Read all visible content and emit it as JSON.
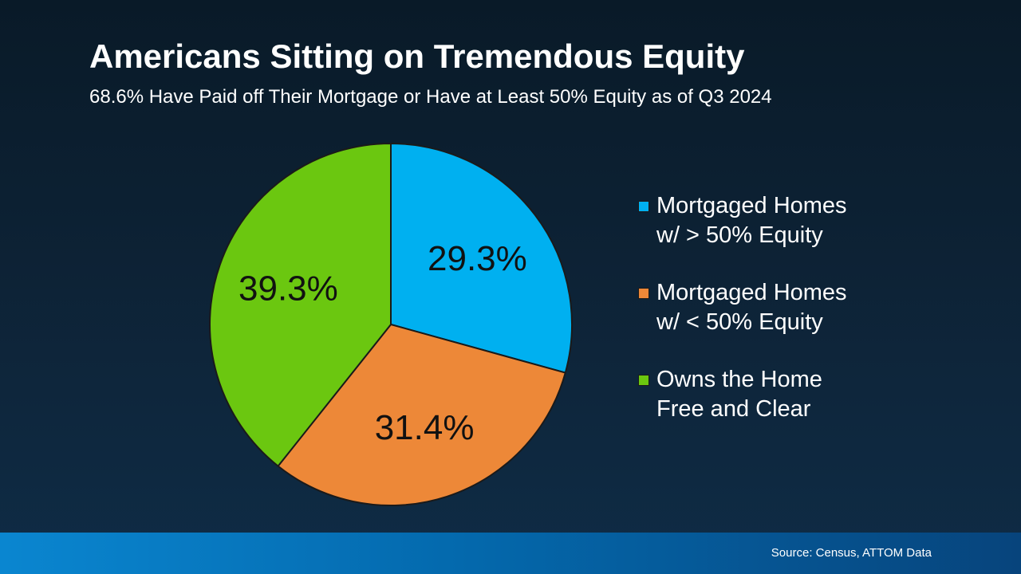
{
  "header": {
    "title": "Americans Sitting on Tremendous Equity",
    "subtitle": "68.6% Have Paid off Their Mortgage or Have at Least 50% Equity as of Q3 2024"
  },
  "chart_data": {
    "type": "pie",
    "title": "Americans Sitting on Tremendous Equity",
    "subtitle": "68.6% Have Paid off Their Mortgage or Have at Least 50% Equity as of Q3 2024",
    "legend_position": "right",
    "slices": [
      {
        "label": "Mortgaged Homes\nw/ > 50% Equity",
        "value": 29.3,
        "display": "29.3%",
        "color": "#00b0f0"
      },
      {
        "label": "Mortgaged Homes\nw/ < 50% Equity",
        "value": 31.4,
        "display": "31.4%",
        "color": "#ed8838"
      },
      {
        "label": "Owns the Home\nFree and Clear",
        "value": 39.3,
        "display": "39.3%",
        "color": "#6bc710"
      }
    ]
  },
  "footer": {
    "source": "Source: Census, ATTOM Data"
  }
}
